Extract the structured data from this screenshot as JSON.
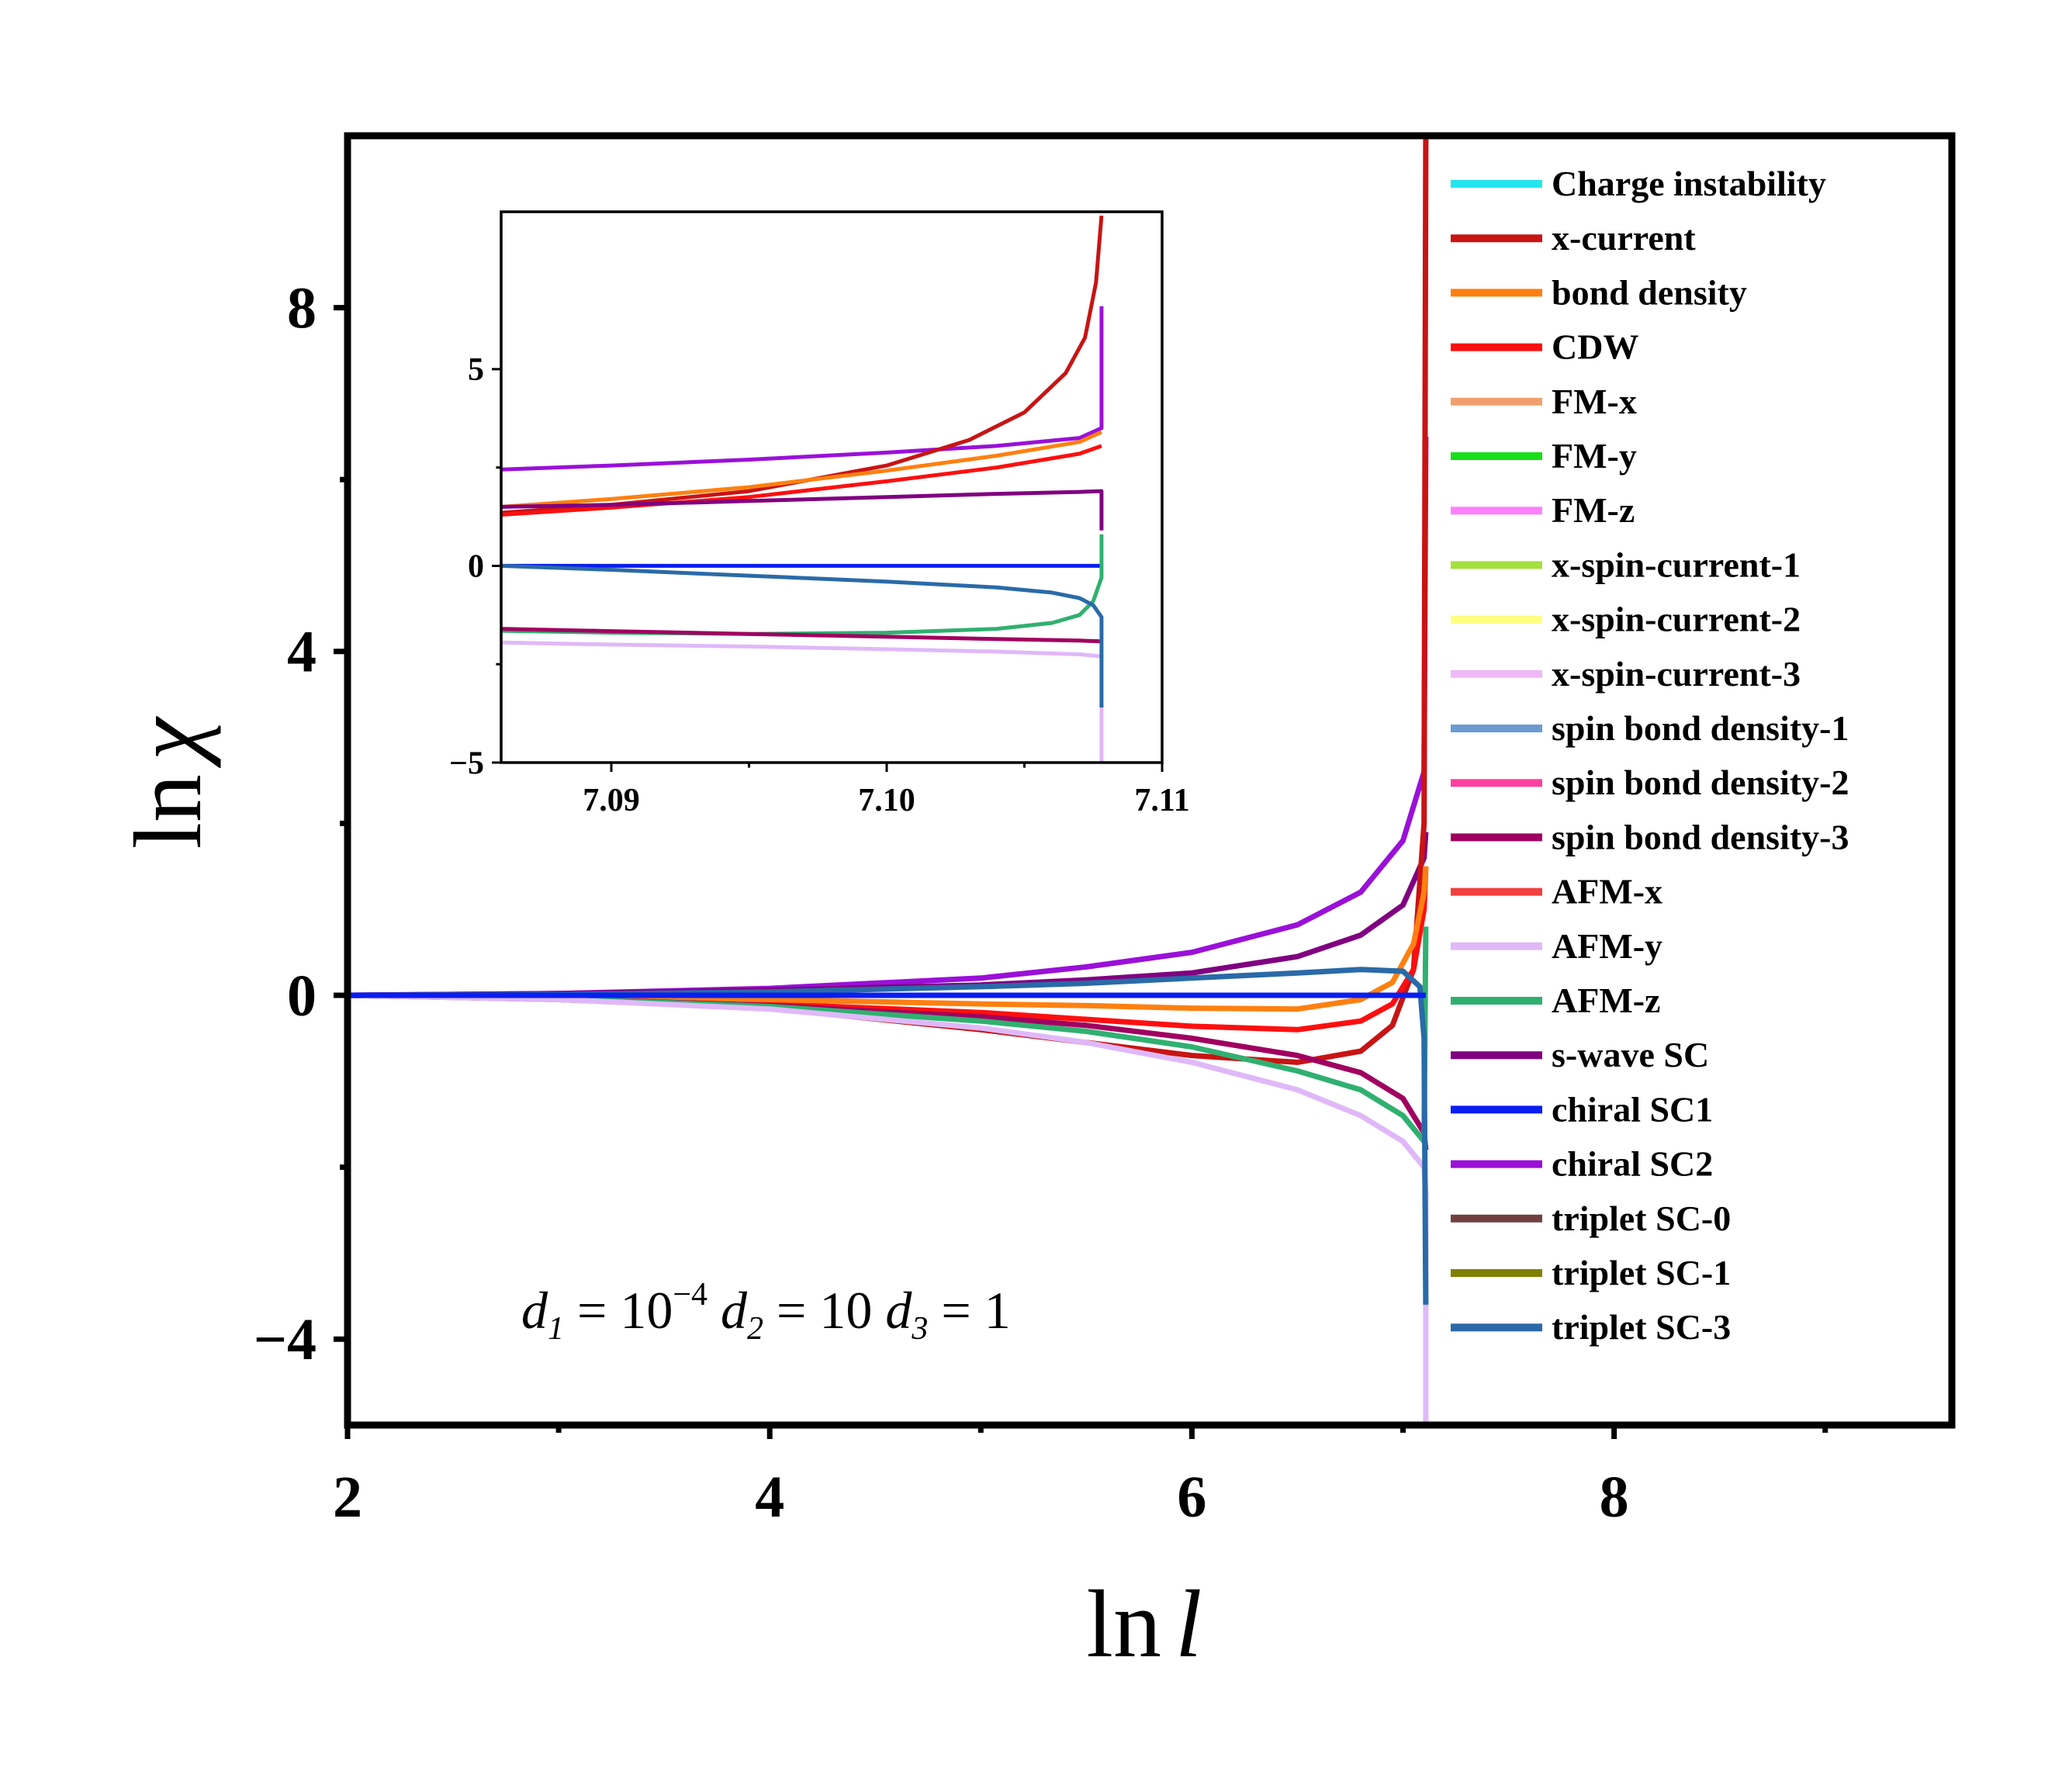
{
  "chart_data": [
    {
      "type": "line",
      "name": "main",
      "xlabel_main": "ln",
      "xlabel_var": "l",
      "ylabel_main": "ln",
      "ylabel_var": "χ",
      "xlim": [
        2,
        9.6
      ],
      "ylim": [
        -5,
        10
      ],
      "xticks": [
        {
          "v": 2,
          "label": "2"
        },
        {
          "v": 4,
          "label": "4"
        },
        {
          "v": 6,
          "label": "6"
        },
        {
          "v": 8,
          "label": "8"
        }
      ],
      "yticks": [
        {
          "v": 8,
          "label": "8"
        },
        {
          "v": 4,
          "label": "4"
        },
        {
          "v": 0,
          "label": "0"
        },
        {
          "v": -4,
          "label": "−4"
        }
      ],
      "annotation": {
        "d1": "d",
        "sub1": "1",
        "eq1": " = 10",
        "exp": "−4",
        "d2": " d",
        "sub2": "2",
        "eq2": " = 10",
        "d3": " d",
        "sub3": "3",
        "eq3": " = 1"
      },
      "legend": [
        {
          "name": "Charge instability",
          "color": "#22e5ee"
        },
        {
          "name": "x-current",
          "color": "#c81414"
        },
        {
          "name": "bond density",
          "color": "#ff8010"
        },
        {
          "name": "CDW",
          "color": "#ff0f0f"
        },
        {
          "name": "FM-x",
          "color": "#f0a070"
        },
        {
          "name": "FM-y",
          "color": "#18e018"
        },
        {
          "name": "FM-z",
          "color": "#ff80ff"
        },
        {
          "name": "x-spin-current-1",
          "color": "#a4e040"
        },
        {
          "name": "x-spin-current-2",
          "color": "#ffff80"
        },
        {
          "name": "x-spin-current-3",
          "color": "#f0b8f8"
        },
        {
          "name": "spin bond density-1",
          "color": "#6a9ad0"
        },
        {
          "name": "spin bond density-2",
          "color": "#ff40a0"
        },
        {
          "name": "spin bond density-3",
          "color": "#a00060"
        },
        {
          "name": "AFM-x",
          "color": "#f04040"
        },
        {
          "name": "AFM-y",
          "color": "#e0b8f8"
        },
        {
          "name": "AFM-z",
          "color": "#30b070"
        },
        {
          "name": "s-wave SC",
          "color": "#800080"
        },
        {
          "name": "chiral SC1",
          "color": "#0a1ef0"
        },
        {
          "name": "chiral SC2",
          "color": "#9a10d8"
        },
        {
          "name": "triplet SC-0",
          "color": "#704040"
        },
        {
          "name": "triplet SC-1",
          "color": "#808000"
        },
        {
          "name": "triplet SC-3",
          "color": "#2a6aa8"
        }
      ],
      "series": [
        {
          "name": "chiral SC2",
          "color": "#9a10d8",
          "x": [
            2,
            3,
            4,
            5,
            5.5,
            6,
            6.5,
            6.8,
            7.0,
            7.1,
            7.108
          ],
          "y": [
            0,
            0.02,
            0.08,
            0.2,
            0.33,
            0.5,
            0.82,
            1.2,
            1.8,
            2.6,
            6.5
          ]
        },
        {
          "name": "s-wave SC",
          "color": "#800080",
          "x": [
            2,
            3,
            4,
            5,
            5.5,
            6,
            6.5,
            6.8,
            7.0,
            7.1,
            7.108
          ],
          "y": [
            0,
            0.02,
            0.06,
            0.12,
            0.18,
            0.26,
            0.45,
            0.7,
            1.05,
            1.6,
            1.9
          ]
        },
        {
          "name": "x-current",
          "color": "#c81414",
          "x": [
            2,
            3,
            4,
            5,
            5.5,
            6,
            6.5,
            6.8,
            6.95,
            7.05,
            7.1,
            7.108
          ],
          "y": [
            0,
            -0.05,
            -0.15,
            -0.4,
            -0.55,
            -0.7,
            -0.78,
            -0.65,
            -0.35,
            0.3,
            2.0,
            10
          ]
        },
        {
          "name": "CDW",
          "color": "#ff0f0f",
          "x": [
            2,
            3,
            4,
            5,
            5.5,
            6,
            6.5,
            6.8,
            6.95,
            7.05,
            7.1,
            7.108
          ],
          "y": [
            0,
            -0.04,
            -0.1,
            -0.2,
            -0.28,
            -0.36,
            -0.4,
            -0.3,
            -0.1,
            0.3,
            1.0,
            1.5
          ]
        },
        {
          "name": "bond density",
          "color": "#ff8010",
          "x": [
            2,
            3,
            4,
            5,
            5.5,
            6,
            6.5,
            6.8,
            6.95,
            7.05,
            7.1,
            7.108
          ],
          "y": [
            0,
            -0.02,
            -0.05,
            -0.1,
            -0.12,
            -0.15,
            -0.16,
            -0.05,
            0.15,
            0.6,
            1.2,
            1.5
          ]
        },
        {
          "name": "spin bond density-3",
          "color": "#a00060",
          "x": [
            2,
            3,
            4,
            5,
            5.5,
            6,
            6.5,
            6.8,
            7.0,
            7.1,
            7.108
          ],
          "y": [
            0,
            -0.04,
            -0.12,
            -0.25,
            -0.35,
            -0.5,
            -0.7,
            -0.9,
            -1.2,
            -1.6,
            -1.8
          ]
        },
        {
          "name": "AFM-z",
          "color": "#30b070",
          "x": [
            2,
            3,
            4,
            5,
            5.5,
            6,
            6.5,
            6.8,
            7.0,
            7.1,
            7.108
          ],
          "y": [
            0,
            -0.04,
            -0.13,
            -0.3,
            -0.42,
            -0.6,
            -0.88,
            -1.1,
            -1.4,
            -1.7,
            0.8
          ]
        },
        {
          "name": "AFM-y",
          "color": "#e0b8f8",
          "x": [
            2,
            3,
            4,
            5,
            5.5,
            6,
            6.5,
            6.8,
            7.0,
            7.1,
            7.108,
            7.108
          ],
          "y": [
            0,
            -0.05,
            -0.16,
            -0.38,
            -0.55,
            -0.78,
            -1.1,
            -1.4,
            -1.7,
            -2.0,
            -2.3,
            -5
          ]
        },
        {
          "name": "triplet SC-3",
          "color": "#2a6aa8",
          "x": [
            2,
            3,
            4,
            5,
            5.5,
            6,
            6.5,
            6.8,
            7.0,
            7.08,
            7.1,
            7.108
          ],
          "y": [
            0,
            0.01,
            0.04,
            0.1,
            0.14,
            0.2,
            0.26,
            0.3,
            0.28,
            0.1,
            -0.5,
            -3.6
          ]
        },
        {
          "name": "chiral SC1",
          "color": "#0a1ef0",
          "x": [
            2,
            7.108
          ],
          "y": [
            0,
            0
          ]
        }
      ]
    },
    {
      "type": "line",
      "name": "inset",
      "xlim": [
        7.086,
        7.11
      ],
      "ylim": [
        -5,
        9
      ],
      "xticks": [
        {
          "v": 7.09,
          "label": "7.09"
        },
        {
          "v": 7.1,
          "label": "7.10"
        },
        {
          "v": 7.11,
          "label": "7.11"
        }
      ],
      "yticks": [
        {
          "v": 5,
          "label": "5"
        },
        {
          "v": 0,
          "label": "0"
        },
        {
          "v": -5,
          "label": "−5"
        }
      ],
      "series": [
        {
          "name": "chiral SC2",
          "color": "#9a10d8",
          "x": [
            7.086,
            7.09,
            7.095,
            7.1,
            7.104,
            7.107,
            7.1078,
            7.1078
          ],
          "y": [
            2.45,
            2.55,
            2.7,
            2.88,
            3.05,
            3.25,
            3.5,
            6.6
          ]
        },
        {
          "name": "x-current",
          "color": "#c81414",
          "x": [
            7.086,
            7.09,
            7.095,
            7.1,
            7.103,
            7.105,
            7.1065,
            7.1072,
            7.1076,
            7.1078
          ],
          "y": [
            1.35,
            1.55,
            1.9,
            2.55,
            3.2,
            3.9,
            4.9,
            5.8,
            7.2,
            8.9
          ]
        },
        {
          "name": "bond density",
          "color": "#ff8010",
          "x": [
            7.086,
            7.09,
            7.095,
            7.1,
            7.104,
            7.107,
            7.1078
          ],
          "y": [
            1.5,
            1.7,
            2.0,
            2.42,
            2.8,
            3.15,
            3.4
          ]
        },
        {
          "name": "CDW",
          "color": "#ff0f0f",
          "x": [
            7.086,
            7.09,
            7.095,
            7.1,
            7.104,
            7.107,
            7.1078
          ],
          "y": [
            1.3,
            1.48,
            1.75,
            2.15,
            2.5,
            2.85,
            3.05
          ]
        },
        {
          "name": "s-wave SC",
          "color": "#800080",
          "x": [
            7.086,
            7.09,
            7.095,
            7.1,
            7.104,
            7.107,
            7.1078,
            7.1078
          ],
          "y": [
            1.5,
            1.55,
            1.65,
            1.75,
            1.83,
            1.88,
            1.9,
            0.9
          ]
        },
        {
          "name": "chiral SC1",
          "color": "#0a1ef0",
          "x": [
            7.086,
            7.1078
          ],
          "y": [
            0,
            0
          ]
        },
        {
          "name": "AFM-z",
          "color": "#30b070",
          "x": [
            7.086,
            7.09,
            7.095,
            7.1,
            7.104,
            7.106,
            7.107,
            7.1075,
            7.1078,
            7.1078
          ],
          "y": [
            -1.65,
            -1.7,
            -1.73,
            -1.7,
            -1.6,
            -1.45,
            -1.25,
            -0.9,
            -0.3,
            0.8
          ]
        },
        {
          "name": "spin bond density-3",
          "color": "#a00060",
          "x": [
            7.086,
            7.09,
            7.095,
            7.1,
            7.104,
            7.107,
            7.1078
          ],
          "y": [
            -1.6,
            -1.66,
            -1.73,
            -1.8,
            -1.86,
            -1.9,
            -1.92
          ]
        },
        {
          "name": "AFM-y",
          "color": "#e0b8f8",
          "x": [
            7.086,
            7.09,
            7.095,
            7.1,
            7.104,
            7.107,
            7.1078,
            7.1078
          ],
          "y": [
            -1.95,
            -2.0,
            -2.05,
            -2.12,
            -2.18,
            -2.25,
            -2.3,
            -5
          ]
        },
        {
          "name": "triplet SC-3",
          "color": "#2a6aa8",
          "x": [
            7.086,
            7.09,
            7.095,
            7.1,
            7.104,
            7.106,
            7.107,
            7.1075,
            7.1078,
            7.1078
          ],
          "y": [
            0,
            -0.1,
            -0.25,
            -0.4,
            -0.55,
            -0.68,
            -0.82,
            -1.0,
            -1.3,
            -3.6
          ]
        }
      ]
    }
  ]
}
